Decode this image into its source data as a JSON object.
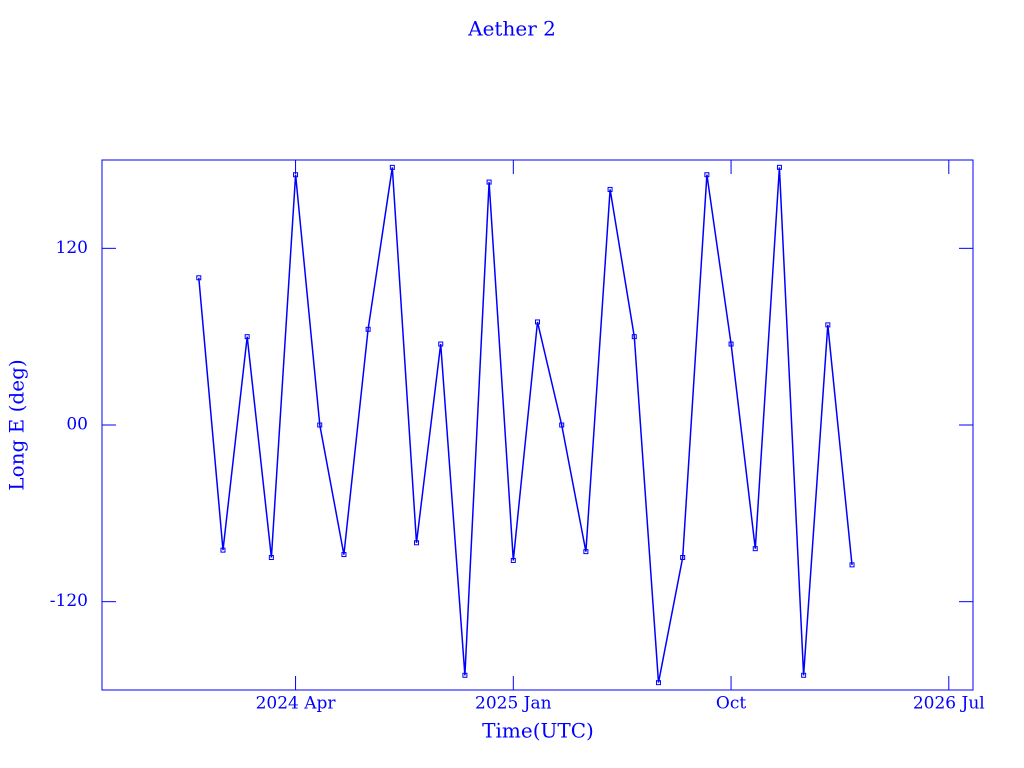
{
  "chart_data": {
    "type": "line",
    "title": "Aether 2",
    "xlabel": "Time(UTC)",
    "ylabel": "Long E (deg)",
    "x": [
      "2023-12",
      "2024-01",
      "2024-02",
      "2024-03",
      "2024-04",
      "2024-05",
      "2024-06",
      "2024-07",
      "2024-08",
      "2024-09",
      "2024-10",
      "2024-11",
      "2024-12",
      "2025-01",
      "2025-02",
      "2025-03",
      "2025-04",
      "2025-05",
      "2025-06",
      "2025-07",
      "2025-08",
      "2025-09",
      "2025-10",
      "2025-11",
      "2025-12",
      "2026-01",
      "2026-02",
      "2026-03"
    ],
    "series": [
      {
        "name": "Aether 2",
        "color": "#0000ff",
        "values": [
          100,
          -85,
          60,
          -90,
          170,
          0,
          -88,
          65,
          175,
          -80,
          55,
          -170,
          165,
          -92,
          70,
          0,
          -86,
          160,
          60,
          -175,
          -90,
          170,
          55,
          -84,
          175,
          -170,
          68,
          -95
        ]
      }
    ],
    "xlim": [
      "2023-08",
      "2026-08"
    ],
    "xticks": [
      {
        "value": "2024-04",
        "label": "2024 Apr"
      },
      {
        "value": "2025-01",
        "label": "2025 Jan"
      },
      {
        "value": "2025-10",
        "label": "Oct"
      },
      {
        "value": "2026-07",
        "label": "2026 Jul"
      }
    ],
    "ylim": [
      -180,
      180
    ],
    "yticks": [
      {
        "value": -120,
        "label": "-120"
      },
      {
        "value": 0,
        "label": "00"
      },
      {
        "value": 120,
        "label": "120"
      }
    ]
  }
}
